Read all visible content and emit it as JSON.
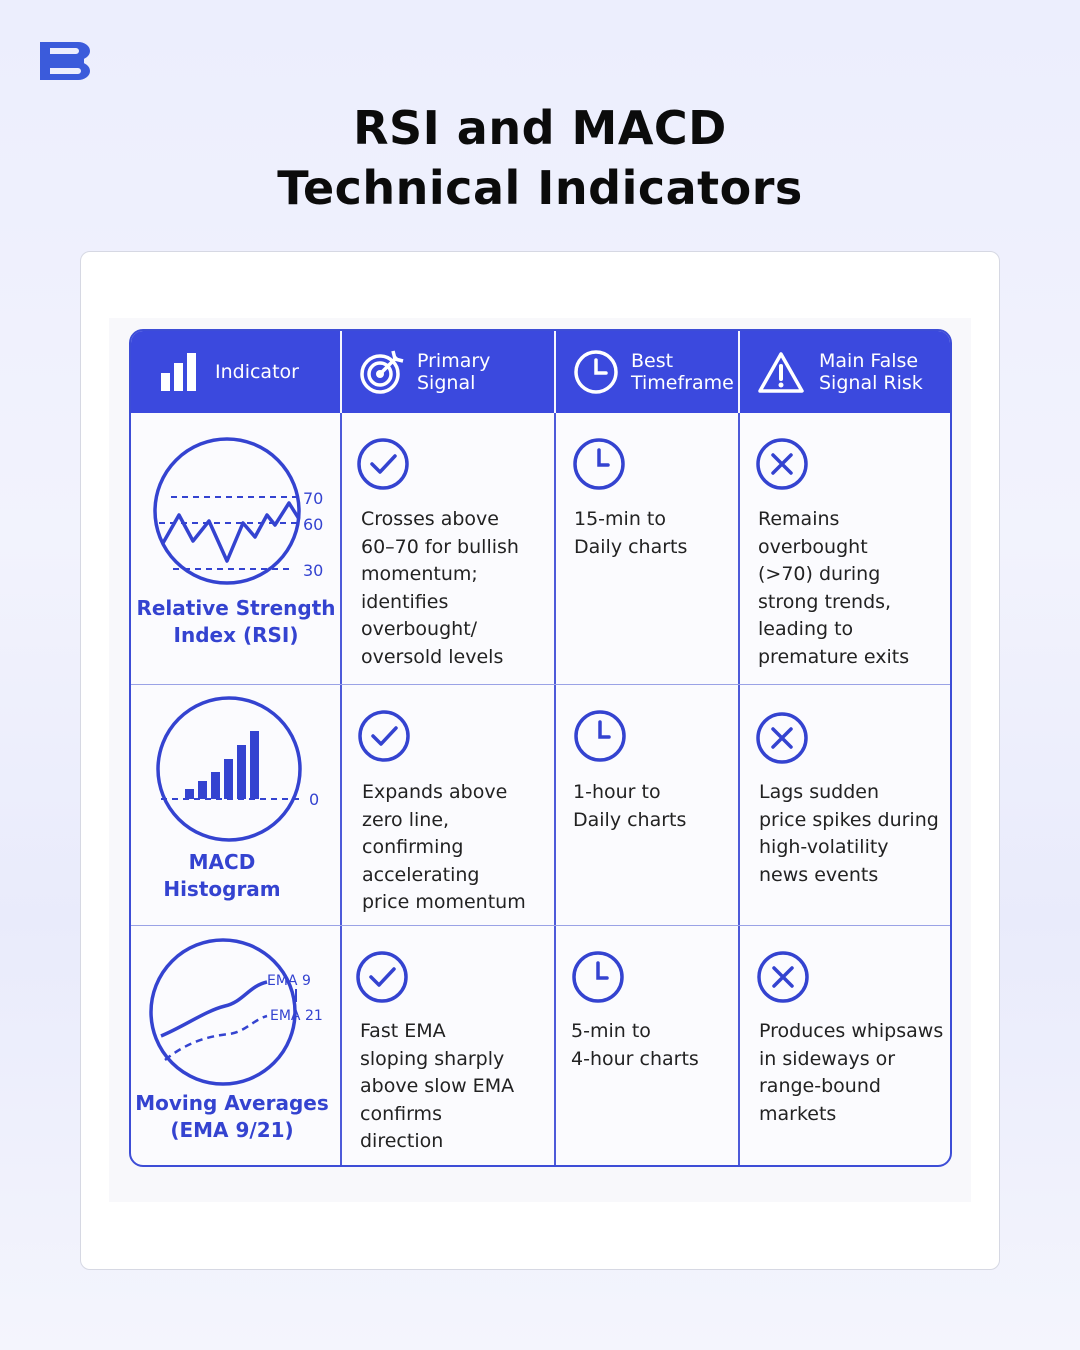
{
  "brand": {
    "logo_icon": "brand-s-logo-icon",
    "color": "#3b5bdb"
  },
  "title": {
    "line1": "RSI and MACD",
    "line2": "Technical Indicators"
  },
  "table": {
    "accent": "#3b49de",
    "headers": [
      {
        "icon": "bar-chart-icon",
        "label": "Indicator"
      },
      {
        "icon": "target-icon",
        "label": "Primary Signal"
      },
      {
        "icon": "clock-icon",
        "label": "Best\nTimeframe"
      },
      {
        "icon": "warning-icon",
        "label": "Main False\nSignal Risk"
      }
    ],
    "rows": [
      {
        "indicator": "Relative Strength\nIndex (RSI)",
        "chart_labels": [
          "70",
          "60",
          "30"
        ],
        "signal": "Crosses above\n60–70 for bullish\nmomentum;\nidentifies\noverbought/\noversold levels",
        "timeframe": "15-min to\nDaily charts",
        "risk": "Remains overbought\n(>70) during\nstrong trends,\nleading to\npremature exits"
      },
      {
        "indicator": "MACD\nHistogram",
        "chart_labels": [
          "0"
        ],
        "signal": "Expands above\nzero line,\nconfirming\naccelerating\nprice momentum",
        "timeframe": "1-hour to\nDaily charts",
        "risk": "Lags sudden\nprice spikes during\nhigh-volatility\nnews events"
      },
      {
        "indicator": "Moving Averages\n(EMA 9/21)",
        "chart_labels": [
          "EMA 9",
          "EMA 21"
        ],
        "signal": "Fast EMA\nsloping sharply\nabove slow EMA\nconfirms\ndirection",
        "timeframe": "5-min to\n4-hour charts",
        "risk": "Produces whipsaws\nin sideways or\nrange-bound\nmarkets"
      }
    ],
    "cell_icons": {
      "signal": "check-circle-icon",
      "timeframe": "clock-icon",
      "risk": "x-circle-icon"
    }
  }
}
